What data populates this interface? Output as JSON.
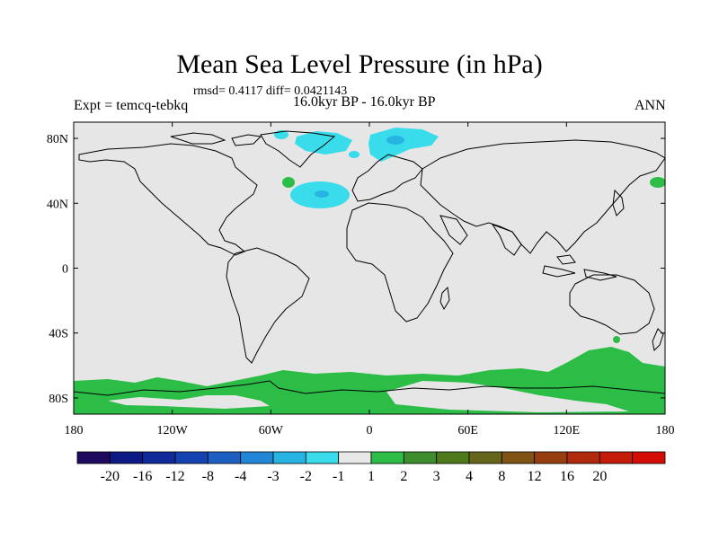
{
  "title": "Mean Sea Level Pressure (in hPa)",
  "stats": "rmsd= 0.4117 diff= 0.0421143",
  "experiment": "Expt = temcq-tebkq",
  "period": "16.0kyr BP - 16.0kyr BP",
  "season": "ANN",
  "map": {
    "projection": "cylindrical-equidistant",
    "lon_range": [
      -180,
      180
    ],
    "lat_range": [
      -90,
      90
    ],
    "background_color": "#e6e6e6",
    "coast_color": "#000000"
  },
  "lat_ticks": [
    {
      "label": "80N",
      "value": 80
    },
    {
      "label": "40N",
      "value": 40
    },
    {
      "label": "0",
      "value": 0
    },
    {
      "label": "40S",
      "value": -40
    },
    {
      "label": "80S",
      "value": -80
    }
  ],
  "lon_ticks": [
    {
      "label": "180",
      "value": -180
    },
    {
      "label": "120W",
      "value": -120
    },
    {
      "label": "60W",
      "value": -60
    },
    {
      "label": "0",
      "value": 0
    },
    {
      "label": "60E",
      "value": 60
    },
    {
      "label": "120E",
      "value": 120
    },
    {
      "label": "180",
      "value": 180
    }
  ],
  "colorbar": {
    "colors": [
      "#1e0a5e",
      "#0d1a86",
      "#102a9a",
      "#1443b1",
      "#1d5ec3",
      "#2186d6",
      "#27b4e2",
      "#38dcea",
      "#e8e8e8",
      "#2bbd46",
      "#3d8d2e",
      "#4e7a1c",
      "#66661a",
      "#7e5314",
      "#963e10",
      "#b0290c",
      "#c41c08",
      "#d40d06"
    ],
    "labels": [
      "-20",
      "-16",
      "-12",
      "-8",
      "-4",
      "-3",
      "-2",
      "-1",
      "1",
      "2",
      "3",
      "4",
      "8",
      "12",
      "16",
      "20"
    ]
  },
  "anomaly_colors": {
    "negative": "#38dcea",
    "negative_dark": "#27b4e2",
    "positive": "#2bbd46"
  }
}
